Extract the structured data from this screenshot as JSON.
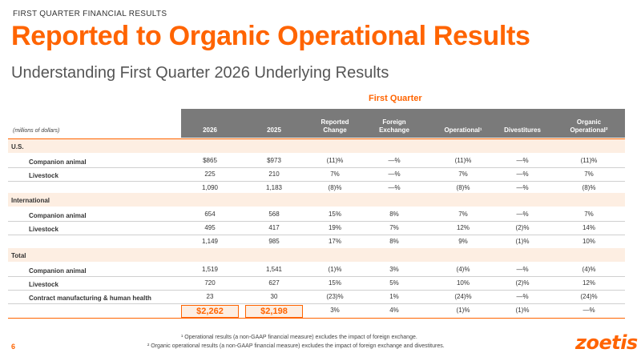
{
  "header": {
    "kicker": "FIRST QUARTER FINANCIAL RESULTS",
    "title": "Reported to Organic Operational Results",
    "subtitle": "Understanding First Quarter 2026 Underlying Results"
  },
  "table": {
    "group_label": "First Quarter",
    "units_label": "(millions of dollars)",
    "columns": [
      "2026",
      "2025",
      "Reported\nChange",
      "Foreign\nExchange",
      "Operational¹",
      "Divestitures",
      "Organic\nOperational²"
    ],
    "sections": [
      {
        "name": "U.S.",
        "rows": [
          {
            "label": "Companion animal",
            "values": [
              "$865",
              "$973",
              "(11)%",
              "—%",
              "(11)%",
              "—%",
              "(11)%"
            ]
          },
          {
            "label": "Livestock",
            "values": [
              "225",
              "210",
              "7%",
              "—%",
              "7%",
              "—%",
              "7%"
            ]
          },
          {
            "label": "",
            "values": [
              "1,090",
              "1,183",
              "(8)%",
              "—%",
              "(8)%",
              "—%",
              "(8)%"
            ]
          }
        ]
      },
      {
        "name": "International",
        "rows": [
          {
            "label": "Companion animal",
            "values": [
              "654",
              "568",
              "15%",
              "8%",
              "7%",
              "—%",
              "7%"
            ]
          },
          {
            "label": "Livestock",
            "values": [
              "495",
              "417",
              "19%",
              "7%",
              "12%",
              "(2)%",
              "14%"
            ]
          },
          {
            "label": "",
            "values": [
              "1,149",
              "985",
              "17%",
              "8%",
              "9%",
              "(1)%",
              "10%"
            ]
          }
        ]
      },
      {
        "name": "Total",
        "rows": [
          {
            "label": "Companion animal",
            "values": [
              "1,519",
              "1,541",
              "(1)%",
              "3%",
              "(4)%",
              "—%",
              "(4)%"
            ]
          },
          {
            "label": "Livestock",
            "values": [
              "720",
              "627",
              "15%",
              "5%",
              "10%",
              "(2)%",
              "12%"
            ]
          },
          {
            "label": "Contract manufacturing & human health",
            "values": [
              "23",
              "30",
              "(23)%",
              "1%",
              "(24)%",
              "—%",
              "(24)%"
            ]
          },
          {
            "label": "",
            "values": [
              "$2,262",
              "$2,198",
              "3%",
              "4%",
              "(1)%",
              "(1)%",
              "—%"
            ]
          }
        ]
      }
    ]
  },
  "footnotes": {
    "note1": "¹ Operational results (a non-GAAP financial measure) excludes the impact of foreign exchange.",
    "note2": "² Organic operational results (a non-GAAP financial measure) excludes the impact of foreign exchange and divestitures."
  },
  "footer": {
    "page_number": "6",
    "logo_text": "zoetis"
  },
  "colors": {
    "accent": "#ff6400",
    "header_bg": "#7a7a7a",
    "section_bg": "#fdeee2"
  }
}
